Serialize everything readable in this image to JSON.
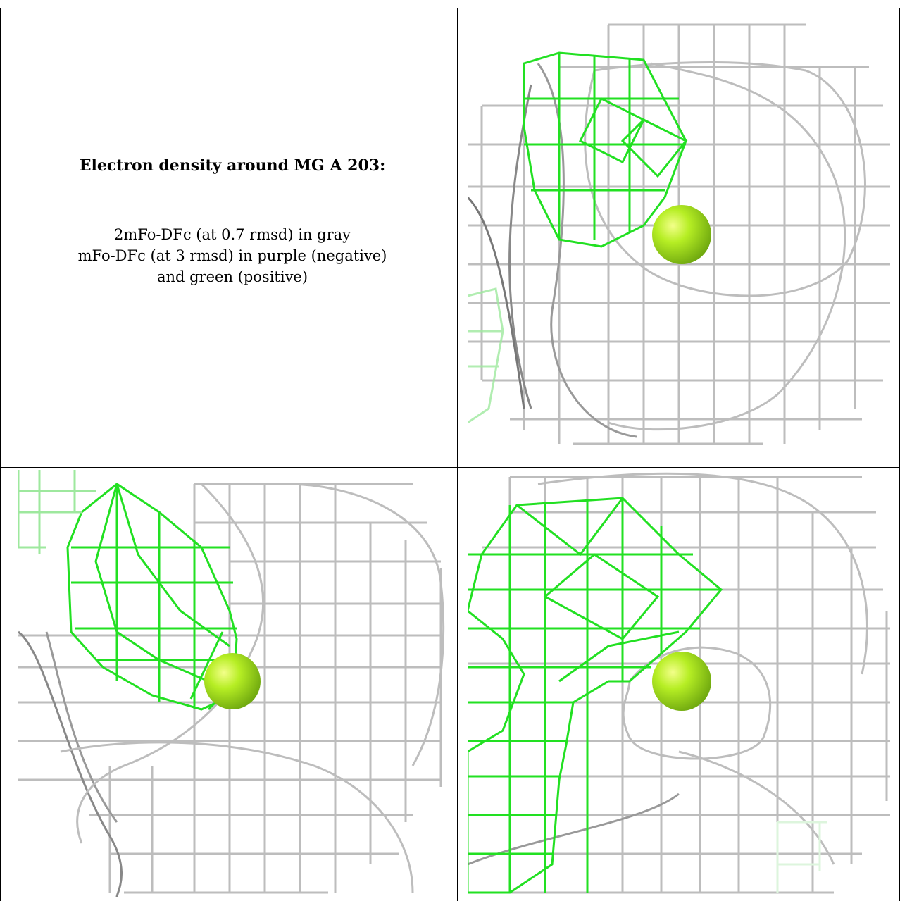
{
  "caption": {
    "title": "Electron density around MG A 203:",
    "line1": "2mFo-DFc (at 0.7 rmsd) in gray",
    "line2": "mFo-DFc (at 3 rmsd) in purple (negative)",
    "line3": "and green (positive)"
  },
  "colors": {
    "map_2fofc": "#b9b9b9",
    "map_fofc_positive": "#1fe01f",
    "ion_sphere": "#9be21a",
    "grid_border": "#000000"
  },
  "panels": [
    {
      "name": "view-1",
      "object": "MG A 203"
    },
    {
      "name": "view-2",
      "object": "MG A 203"
    },
    {
      "name": "view-3",
      "object": "MG A 203"
    }
  ]
}
